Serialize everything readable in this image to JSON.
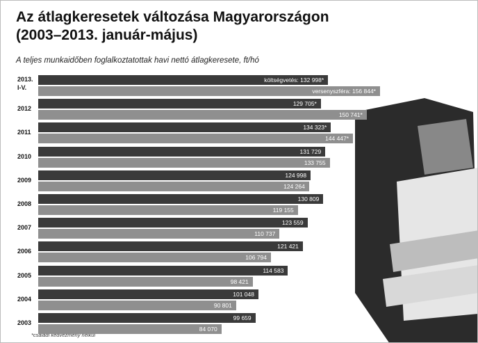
{
  "chart_data": {
    "type": "bar",
    "orientation": "horizontal",
    "title": "Az átlagkeresetek változása Magyarországon",
    "title_line2": "(2003–2013. január-május)",
    "subtitle": "A teljes munkaidőben foglalkoztatottak havi nettó átlagkeresete, ft/hó",
    "footnote": "*családi kedvezmény nélkül",
    "categories": [
      "2013.\nI-V.",
      "2012",
      "2011",
      "2010",
      "2009",
      "2008",
      "2007",
      "2006",
      "2005",
      "2004",
      "2003"
    ],
    "series": [
      {
        "color": "#3a3a3a",
        "values": [
          132998,
          129705,
          134323,
          131729,
          124998,
          130809,
          123559,
          121421,
          114583,
          101048,
          99659
        ],
        "value_labels": [
          "költségvetés: 132 998*",
          "129 705*",
          "134 323*",
          "131 729",
          "124 998",
          "130 809",
          "123 559",
          "121 421",
          "114 583",
          "101 048",
          "99 659"
        ]
      },
      {
        "color": "#8f8f8f",
        "values": [
          156844,
          150741,
          144447,
          133755,
          124264,
          119155,
          110737,
          106794,
          98421,
          90801,
          84070
        ],
        "value_labels": [
          "versenyszféra: 156 844*",
          "150 741*",
          "144 447*",
          "133 755",
          "124 264",
          "119 155",
          "110 737",
          "106 794",
          "98 421",
          "90 801",
          "84 070"
        ]
      }
    ]
  }
}
